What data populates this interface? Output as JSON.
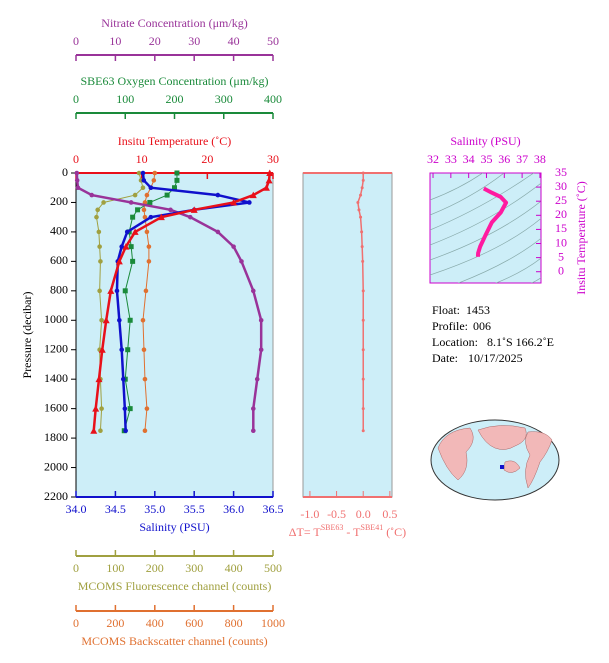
{
  "chart_data": [
    {
      "type": "profile",
      "ylabel": "Pressure (decibar)",
      "ylim": [
        0,
        2200
      ],
      "yticks": [
        0,
        200,
        400,
        600,
        800,
        1000,
        1200,
        1400,
        1600,
        1800,
        2000,
        2200
      ],
      "pressure": [
        0,
        50,
        100,
        150,
        200,
        250,
        300,
        400,
        500,
        600,
        800,
        1000,
        1200,
        1400,
        1600,
        1750
      ],
      "series": [
        {
          "xlabel": "Nitrate Concentration (μm/kg)",
          "color": "#993399",
          "marker": "circle",
          "width": 2.5,
          "xlim": [
            0,
            50
          ],
          "xticks": [
            0,
            10,
            20,
            30,
            40,
            50
          ],
          "values": [
            0.2,
            0.3,
            0.5,
            4,
            14,
            24,
            29,
            36,
            40,
            42,
            45,
            47,
            47,
            46,
            45,
            45
          ]
        },
        {
          "xlabel": "SBE63 Oxygen Concentration (μm/kg)",
          "color": "#1a8a3a",
          "marker": "square",
          "width": 1,
          "xlim": [
            0,
            400
          ],
          "xticks": [
            0,
            100,
            200,
            300,
            400
          ],
          "values": [
            205,
            205,
            200,
            185,
            150,
            125,
            115,
            108,
            112,
            115,
            100,
            110,
            105,
            100,
            110,
            98
          ]
        },
        {
          "xlabel": "Insitu Temperature (˚C)",
          "color": "#e8101a",
          "marker": "triangle",
          "width": 2.5,
          "xlim": [
            0,
            30
          ],
          "xticks": [
            0,
            10,
            20,
            30
          ],
          "values": [
            29.5,
            29.4,
            29.0,
            27.0,
            24.0,
            18.0,
            13.0,
            9.0,
            7.6,
            6.6,
            5.3,
            4.6,
            4.0,
            3.5,
            3.0,
            2.7
          ]
        },
        {
          "xlabel": "Salinity (PSU)",
          "color": "#1010cc",
          "marker": "circle",
          "width": 2.5,
          "xlim": [
            34.0,
            36.5
          ],
          "xticks": [
            {
              "value": 34.0,
              "label": "34.0"
            },
            {
              "value": 34.5,
              "label": "34.5"
            },
            {
              "value": 35.0,
              "label": "35.0"
            },
            {
              "value": 35.5,
              "label": "35.5"
            },
            {
              "value": 36.0,
              "label": "36.0"
            },
            {
              "value": 36.5,
              "label": "36.5"
            }
          ],
          "values": [
            34.85,
            34.86,
            34.95,
            35.8,
            36.2,
            35.5,
            34.95,
            34.65,
            34.58,
            34.53,
            34.52,
            34.55,
            34.58,
            34.6,
            34.62,
            34.63
          ]
        },
        {
          "xlabel": "MCOMS Fluorescence channel (counts)",
          "color": "#a0a040",
          "marker": "circle",
          "width": 1,
          "xlim": [
            0,
            500
          ],
          "xticks": [
            0,
            100,
            200,
            300,
            400,
            500
          ],
          "values": [
            160,
            165,
            170,
            150,
            70,
            55,
            52,
            58,
            60,
            62,
            60,
            65,
            60,
            62,
            65,
            62
          ]
        },
        {
          "xlabel": "MCOMS Backscatter channel (counts)",
          "color": "#e07030",
          "marker": "circle",
          "width": 1,
          "xlim": [
            0,
            1000
          ],
          "xticks": [
            0,
            200,
            400,
            600,
            800,
            1000
          ],
          "values": [
            400,
            395,
            380,
            360,
            350,
            345,
            350,
            360,
            370,
            370,
            355,
            340,
            345,
            350,
            360,
            350
          ]
        }
      ]
    },
    {
      "type": "line",
      "xlabel": [
        "ΔT= T",
        "SBE63",
        " - T",
        "SBE41",
        " (˚C)"
      ],
      "color": "#f07070",
      "xlim": [
        -1.13,
        0.54
      ],
      "xticks": [
        {
          "value": -1.0,
          "label": "-1.0"
        },
        {
          "value": -0.5,
          "label": "-0.5"
        },
        {
          "value": 0.0,
          "label": "0.0"
        },
        {
          "value": 0.5,
          "label": "0.5"
        }
      ],
      "ylim": [
        0,
        2200
      ],
      "pressure": [
        0,
        50,
        100,
        150,
        200,
        250,
        300,
        400,
        500,
        600,
        800,
        1000,
        1200,
        1400,
        1600,
        1750
      ],
      "values": [
        0,
        0,
        -0.02,
        -0.05,
        -0.1,
        -0.08,
        -0.05,
        -0.03,
        -0.02,
        -0.01,
        0,
        0,
        0,
        0,
        0,
        0
      ]
    },
    {
      "type": "line",
      "xlabel": "Salinity (PSU)",
      "ylabel": "Insitu Temperature (˚C)",
      "color": "#ff1aa0",
      "xlim": [
        31.83,
        38.06
      ],
      "xticks": [
        32,
        33,
        34,
        35,
        36,
        37,
        38
      ],
      "ylim": [
        -4,
        35
      ],
      "yticks": [
        0,
        5,
        10,
        15,
        20,
        25,
        30,
        35
      ],
      "x": [
        34.85,
        35.3,
        35.8,
        36.1,
        35.8,
        35.3,
        34.95,
        34.65,
        34.58,
        34.53,
        34.52
      ],
      "values": [
        29.5,
        28.0,
        26.5,
        24.5,
        21.0,
        17.5,
        13.0,
        9.0,
        7.6,
        6.6,
        5.3
      ]
    }
  ],
  "info": [
    {
      "label": "Float:",
      "value": "1453"
    },
    {
      "label": "Profile:",
      "value": "006"
    },
    {
      "label": "Location:",
      "value": "8.1˚S  166.2˚E"
    },
    {
      "label": "Date:",
      "value": "10/17/2025"
    }
  ]
}
